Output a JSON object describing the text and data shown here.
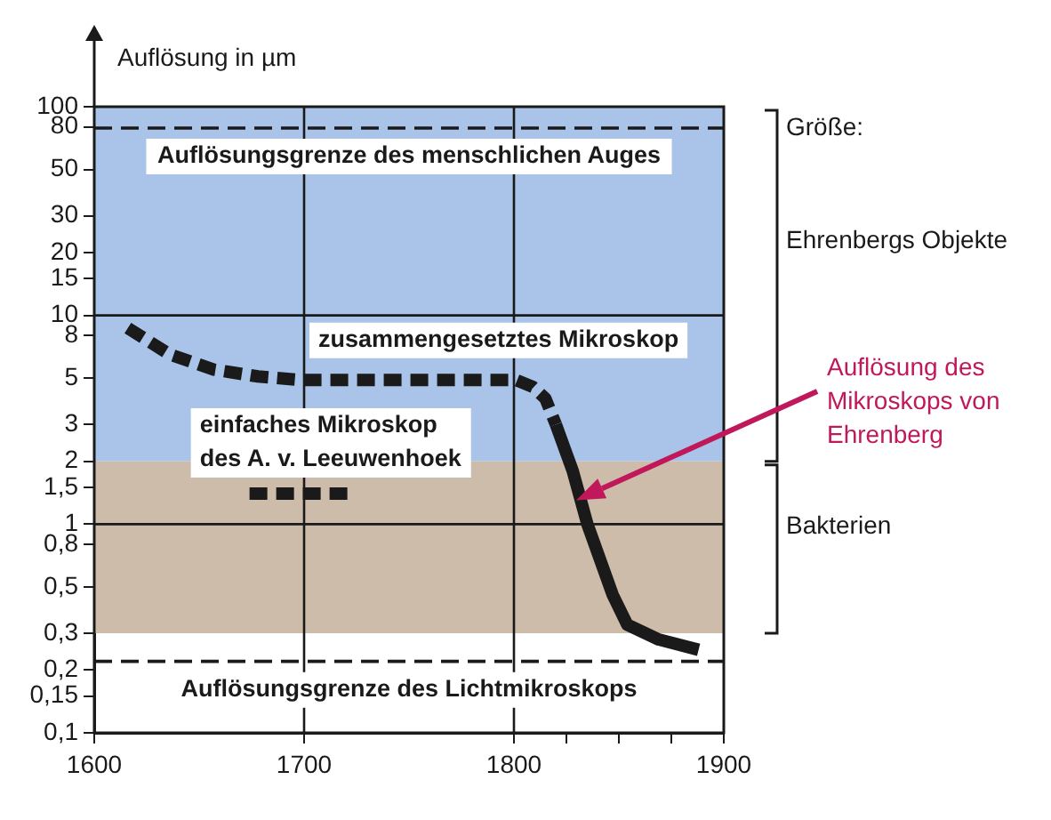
{
  "chart_data": {
    "type": "line",
    "ylabel": "Auflösung in µm",
    "log": "y",
    "xlim": [
      1600,
      1900
    ],
    "xticks": [
      1600,
      1700,
      1800,
      {
        "value": 1825,
        "label": null
      },
      {
        "value": 1850,
        "label": null
      },
      {
        "value": 1875,
        "label": null
      },
      1900
    ],
    "ylim": [
      0.1,
      100
    ],
    "yticks": [
      {
        "value": 0.1,
        "label": "0,1"
      },
      {
        "value": 0.15,
        "label": "0,15"
      },
      {
        "value": 0.2,
        "label": "0,2"
      },
      {
        "value": 0.3,
        "label": "0,3"
      },
      {
        "value": 0.5,
        "label": "0,5"
      },
      {
        "value": 0.8,
        "label": "0,8"
      },
      1,
      {
        "value": 1.5,
        "label": "1,5"
      },
      2,
      3,
      5,
      8,
      10,
      15,
      20,
      30,
      50,
      80,
      100
    ],
    "series": [
      {
        "name": "einfaches Mikroskop des A. v. Leeuwenhoek",
        "type": "line",
        "line_style": "dashed",
        "color": "#1a1a1a",
        "x": [
          1674,
          1723
        ],
        "values": [
          1.4,
          1.4
        ]
      },
      {
        "name": "zusammengesetztes Mikroskop",
        "type": "line",
        "line_style": "dashed",
        "color": "#1a1a1a",
        "x": [
          1616,
          1636,
          1657,
          1678,
          1699,
          1750,
          1801,
          1809,
          1815,
          1820
        ],
        "values": [
          8.7,
          6.5,
          5.5,
          5.1,
          4.9,
          4.9,
          4.9,
          4.55,
          4.0,
          3.0
        ]
      },
      {
        "type": "line",
        "line_style": "solid",
        "color": "#1a1a1a",
        "x": [
          1820,
          1828,
          1835,
          1847,
          1854,
          1869,
          1888
        ],
        "values": [
          3.0,
          1.8,
          1.0,
          0.46,
          0.33,
          0.28,
          0.25
        ]
      }
    ],
    "ref_lines": [
      {
        "axis": "y",
        "value": 79,
        "label": "Auflösungsgrenze des menschlichen Auges",
        "line_style": "dashed",
        "color": "#1a1a1a"
      },
      {
        "axis": "y",
        "value": 0.22,
        "label": "Auflösungsgrenze des Lichtmikroskops",
        "line_style": "dashed",
        "color": "#1a1a1a"
      },
      {
        "axis": "x",
        "value": 1700,
        "line_style": "solid",
        "color": "#1a1a1a"
      },
      {
        "axis": "x",
        "value": 1800,
        "line_style": "solid",
        "color": "#1a1a1a"
      },
      {
        "axis": "y",
        "value": 10,
        "line_style": "solid",
        "color": "#1a1a1a"
      },
      {
        "axis": "y",
        "value": 1,
        "line_style": "solid",
        "color": "#1a1a1a"
      }
    ],
    "bands": [
      {
        "axis": "y",
        "from": 2,
        "to": 100,
        "label": "Ehrenbergs Objekte",
        "color": "#a9c3e9"
      },
      {
        "axis": "y",
        "from": 0.3,
        "to": 2,
        "label": "Bakterien",
        "color": "#cdbcaa"
      }
    ],
    "annotations": [
      "Größe:",
      {
        "text": "Auflösung des Mikroskops von Ehrenberg",
        "x": 1837,
        "y": 1.4
      }
    ]
  }
}
